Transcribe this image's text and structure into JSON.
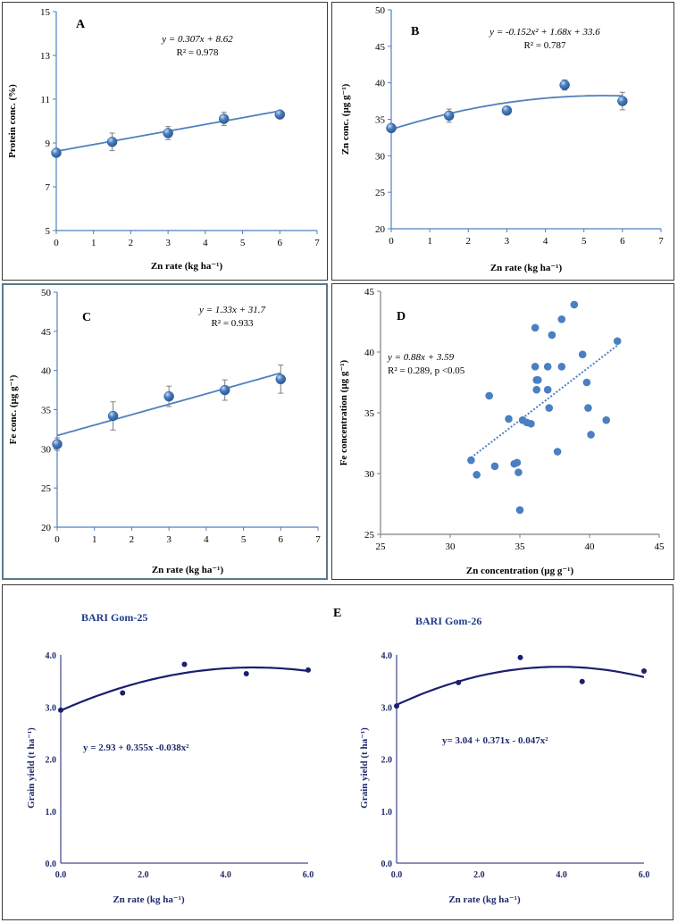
{
  "chart_data": [
    {
      "id": "A",
      "type": "scatter",
      "panel_letter": "A",
      "equation": "y = 0.307x + 8.62",
      "r2": "R² = 0.978",
      "xlabel": "Zn rate (kg ha⁻¹)",
      "ylabel": "Protein conc. (%)",
      "xlim": [
        0,
        7
      ],
      "ylim": [
        5,
        15
      ],
      "xticks": [
        0,
        1,
        2,
        3,
        4,
        5,
        6,
        7
      ],
      "yticks": [
        5,
        7,
        9,
        11,
        13,
        15
      ],
      "x": [
        0,
        1.5,
        3,
        4.5,
        6
      ],
      "y": [
        8.55,
        9.05,
        9.45,
        10.1,
        10.3
      ],
      "err": [
        0.15,
        0.4,
        0.3,
        0.3,
        0.15
      ],
      "fit": {
        "kind": "linear",
        "a": 0.307,
        "b": 8.62,
        "from": 0,
        "to": 6
      }
    },
    {
      "id": "B",
      "type": "scatter",
      "panel_letter": "B",
      "equation": "y = -0.152x² + 1.68x + 33.6",
      "r2": "R² = 0.787",
      "xlabel": "Zn rate (kg ha⁻¹)",
      "ylabel": "Zn conc. (µg g⁻¹)",
      "xlim": [
        0,
        7
      ],
      "ylim": [
        20,
        50
      ],
      "xticks": [
        0,
        1,
        2,
        3,
        4,
        5,
        6,
        7
      ],
      "yticks": [
        20,
        25,
        30,
        35,
        40,
        45,
        50
      ],
      "x": [
        0,
        1.5,
        3,
        4.5,
        6
      ],
      "y": [
        33.8,
        35.5,
        36.2,
        39.7,
        37.5
      ],
      "err": [
        0.4,
        0.9,
        0.5,
        0.7,
        1.2
      ],
      "fit": {
        "kind": "quad",
        "a": -0.152,
        "b": 1.68,
        "c": 33.6,
        "from": 0,
        "to": 6
      }
    },
    {
      "id": "C",
      "type": "scatter",
      "panel_letter": "C",
      "equation": "y = 1.33x + 31.7",
      "r2": "R² = 0.933",
      "xlabel": "Zn rate (kg ha⁻¹)",
      "ylabel": "Fe conc. (µg g⁻¹)",
      "xlim": [
        0,
        7
      ],
      "ylim": [
        20,
        50
      ],
      "xticks": [
        0,
        1,
        2,
        3,
        4,
        5,
        6,
        7
      ],
      "yticks": [
        20,
        25,
        30,
        35,
        40,
        45,
        50
      ],
      "x": [
        0,
        1.5,
        3,
        4.5,
        6
      ],
      "y": [
        30.6,
        34.2,
        36.7,
        37.5,
        38.9
      ],
      "err": [
        0.8,
        1.8,
        1.3,
        1.3,
        1.8
      ],
      "fit": {
        "kind": "linear",
        "a": 1.33,
        "b": 31.7,
        "from": 0,
        "to": 6
      }
    },
    {
      "id": "D",
      "type": "scatter",
      "panel_letter": "D",
      "equation": "y = 0.88x + 3.59",
      "r2": "R² = 0.289, p <0.05",
      "xlabel": "Zn concentration (µg g⁻¹)",
      "ylabel": "Fe concentration (µg g⁻¹)",
      "xlim": [
        25,
        45
      ],
      "ylim": [
        25,
        45
      ],
      "xticks": [
        25,
        30,
        35,
        40,
        45
      ],
      "yticks": [
        25,
        30,
        35,
        40,
        45
      ],
      "x": [
        31.5,
        31.9,
        32.8,
        33.2,
        34.2,
        34.6,
        34.8,
        34.9,
        35.0,
        35.2,
        35.5,
        35.8,
        36.1,
        36.1,
        36.2,
        36.2,
        36.3,
        37.0,
        37.0,
        37.1,
        37.3,
        37.7,
        38.0,
        38.0,
        38.9,
        39.5,
        39.8,
        39.9,
        40.1,
        41.2,
        42.0
      ],
      "y": [
        31.1,
        29.9,
        36.4,
        30.6,
        34.5,
        30.8,
        30.9,
        30.1,
        27.0,
        34.4,
        34.2,
        34.1,
        42.0,
        38.8,
        36.9,
        37.7,
        37.7,
        38.8,
        36.9,
        35.4,
        41.4,
        31.8,
        42.7,
        38.8,
        43.9,
        39.8,
        37.5,
        35.4,
        33.2,
        34.4,
        40.9
      ],
      "fit": {
        "kind": "linear",
        "a": 0.88,
        "b": 3.59,
        "from": 31.5,
        "to": 42
      }
    },
    {
      "id": "E1",
      "type": "scatter",
      "panel_letter": "E",
      "title": "BARI Gom-25",
      "equation": "y = 2.93 + 0.355x -0.038x²",
      "xlabel": "Zn rate (kg ha⁻¹)",
      "ylabel": "Grain yield (t ha⁻¹)",
      "xlim": [
        0,
        6
      ],
      "ylim": [
        0,
        4
      ],
      "xticks": [
        "0.0",
        "2.0",
        "4.0",
        "6.0"
      ],
      "yticks": [
        "0.0",
        "1.0",
        "2.0",
        "3.0",
        "4.0"
      ],
      "x": [
        0,
        1.5,
        3,
        4.5,
        6
      ],
      "y": [
        2.94,
        3.27,
        3.82,
        3.64,
        3.71
      ],
      "fit": {
        "kind": "quad",
        "a": -0.038,
        "b": 0.355,
        "c": 2.93,
        "from": 0,
        "to": 6
      }
    },
    {
      "id": "E2",
      "type": "scatter",
      "title": "BARI Gom-26",
      "equation": "y= 3.04 + 0.371x - 0.047x²",
      "xlabel": "Zn rate (kg ha⁻¹)",
      "ylabel": "Grain yield (t ha⁻¹)",
      "xlim": [
        0,
        6
      ],
      "ylim": [
        0,
        4
      ],
      "xticks": [
        "0.0",
        "2.0",
        "4.0",
        "6.0"
      ],
      "yticks": [
        "0.0",
        "1.0",
        "2.0",
        "3.0",
        "4.0"
      ],
      "x": [
        0,
        1.5,
        3,
        4.5,
        6
      ],
      "y": [
        3.02,
        3.47,
        3.95,
        3.49,
        3.69
      ],
      "fit": {
        "kind": "quad",
        "a": -0.047,
        "b": 0.371,
        "c": 3.04,
        "from": 0,
        "to": 6
      }
    }
  ],
  "colors": {
    "marker": "#4a7fc1",
    "marker_dark": "#2c5a96",
    "fit_line": "#4f81bd",
    "axis": "#4f81bd",
    "navy": "#1a1f6e",
    "errbar": "#7f7f7f"
  }
}
